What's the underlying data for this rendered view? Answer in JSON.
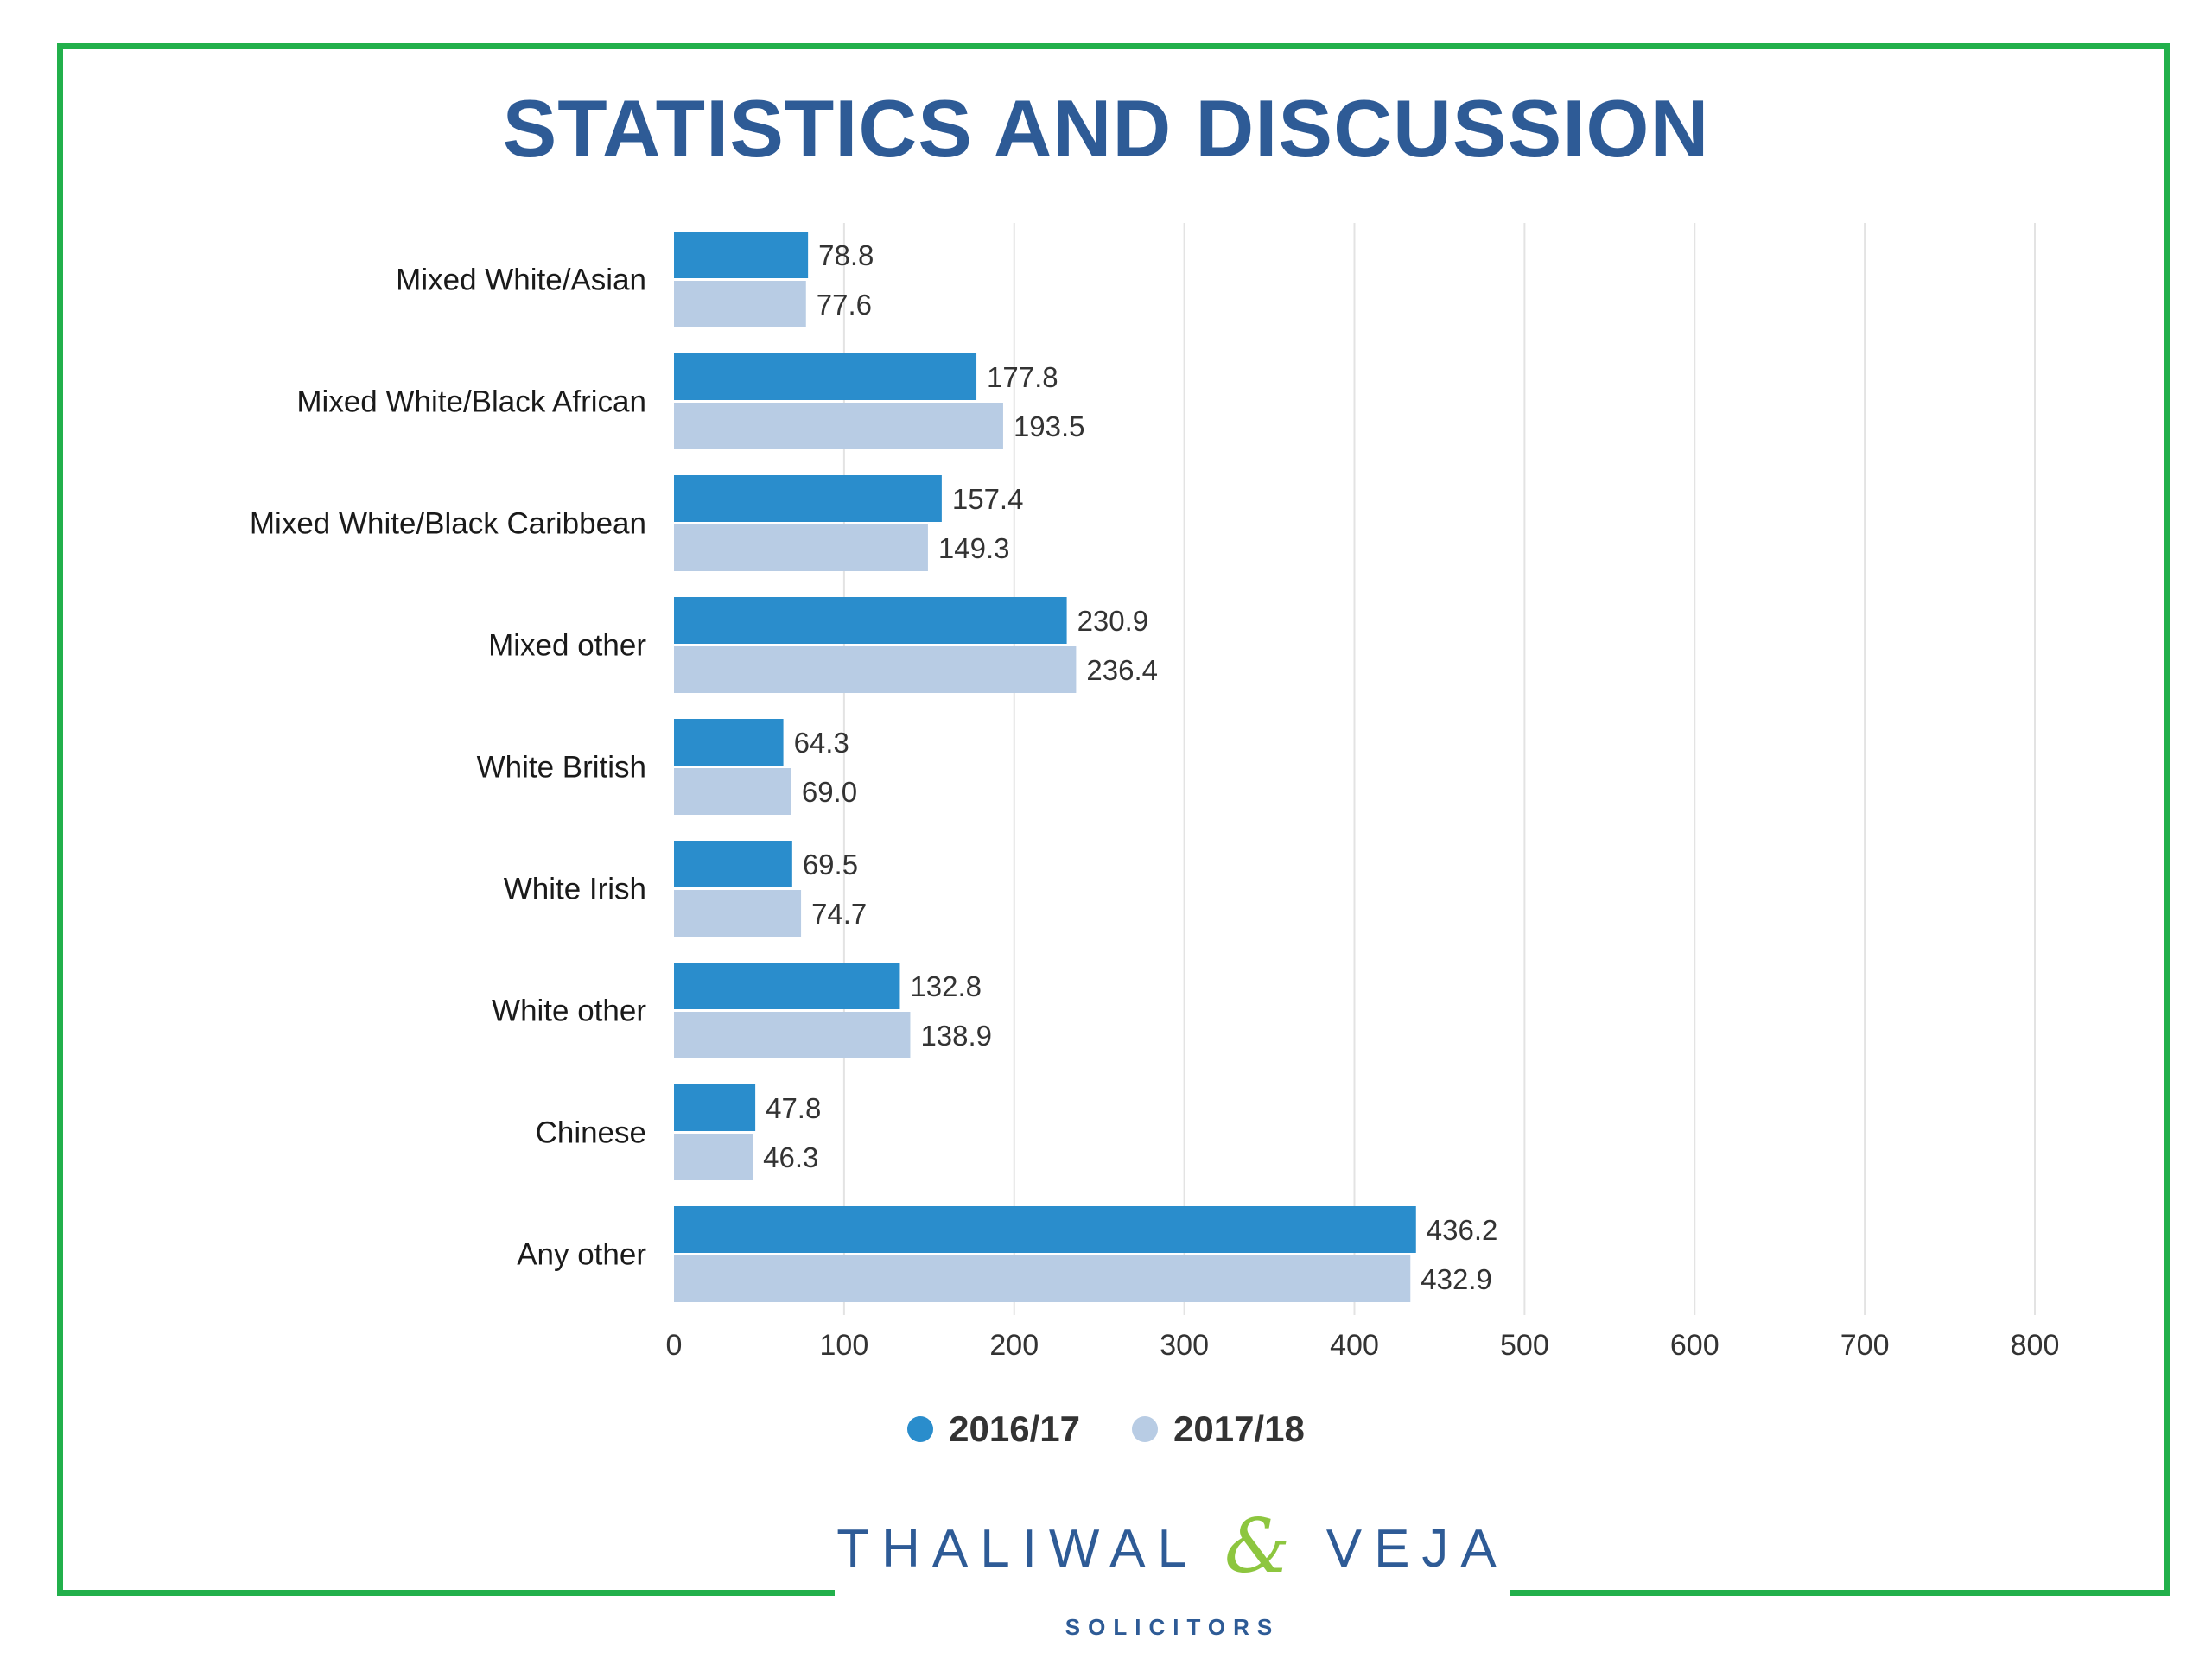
{
  "page": {
    "title": "STATISTICS AND DISCUSSION",
    "frame_color": "#22b04b",
    "title_color": "#2e5b96"
  },
  "chart_data": {
    "type": "bar",
    "orientation": "horizontal",
    "categories": [
      "Mixed White/Asian",
      "Mixed White/Black African",
      "Mixed White/Black Caribbean",
      "Mixed other",
      "White British",
      "White Irish",
      "White other",
      "Chinese",
      "Any other"
    ],
    "series": [
      {
        "name": "2016/17",
        "color": "#2a8dcc",
        "values": [
          78.8,
          177.8,
          157.4,
          230.9,
          64.3,
          69.5,
          132.8,
          47.8,
          436.2
        ],
        "labels": [
          "78.8",
          "177.8",
          "157.4",
          "230.9",
          "64.3",
          "69.5",
          "132.8",
          "47.8",
          "436.2"
        ]
      },
      {
        "name": "2017/18",
        "color": "#b8cce4",
        "values": [
          77.6,
          193.5,
          149.3,
          236.4,
          69.0,
          74.7,
          138.9,
          46.3,
          432.9
        ],
        "labels": [
          "77.6",
          "193.5",
          "149.3",
          "236.4",
          "69.0",
          "74.7",
          "138.9",
          "46.3",
          "432.9"
        ]
      }
    ],
    "xlim": [
      0,
      800
    ],
    "xticks": [
      "0",
      "100",
      "200",
      "300",
      "400",
      "500",
      "600",
      "700",
      "800"
    ],
    "grid": true,
    "legend_position": "bottom-center"
  },
  "logo": {
    "name_left": "THALIWAL",
    "ampersand": "&",
    "name_right": "VEJA",
    "subtitle": "SOLICITORS"
  }
}
